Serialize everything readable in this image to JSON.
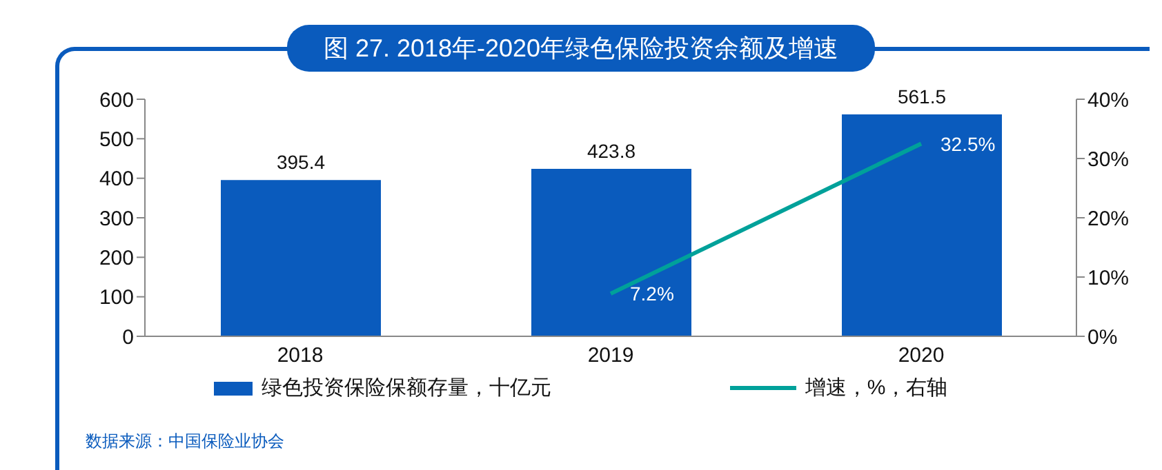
{
  "chart_data": {
    "type": "bar",
    "title": "图 27. 2018年-2020年绿色保险投资余额及增速",
    "categories": [
      "2018",
      "2019",
      "2020"
    ],
    "series": [
      {
        "name": "绿色投资保险保额存量，十亿元",
        "color": "#0a5bbd",
        "values": [
          395.4,
          423.8,
          561.5
        ]
      },
      {
        "name": "增速，%，右轴",
        "type": "line",
        "axis": "y2",
        "color": "#00a19a",
        "values": [
          null,
          7.2,
          32.5
        ],
        "value_labels": [
          null,
          "7.2%",
          "32.5%"
        ]
      }
    ],
    "ylim": [
      0,
      600
    ],
    "yticks": [
      0,
      100,
      200,
      300,
      400,
      500,
      600
    ],
    "y2lim": [
      0,
      40
    ],
    "y2ticks": [
      {
        "value": 0,
        "label": "0%"
      },
      {
        "value": 10,
        "label": "10%"
      },
      {
        "value": 20,
        "label": "20%"
      },
      {
        "value": 30,
        "label": "30%"
      },
      {
        "value": 40,
        "label": "40%"
      }
    ],
    "data_labels": true,
    "grid": false,
    "legend": "bottom",
    "marker": "none",
    "annotations": [
      "数据来源：中国保险业协会"
    ]
  }
}
